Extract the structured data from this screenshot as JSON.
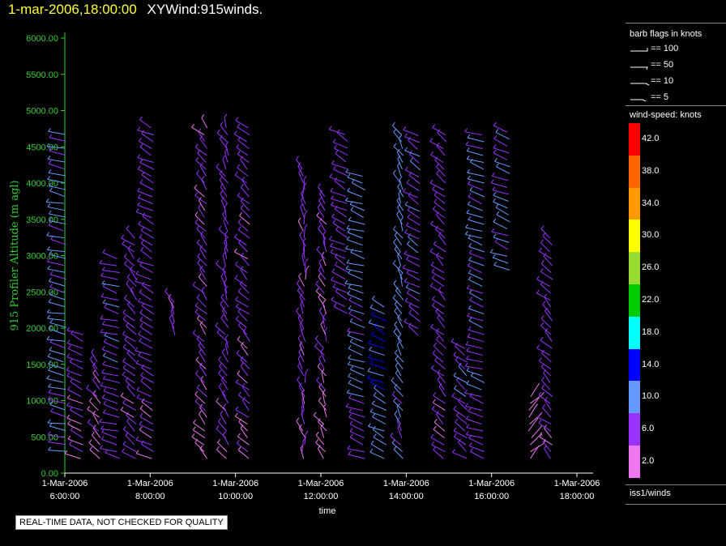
{
  "header": {
    "date": "1-mar-2006,18:00:00",
    "name": "XYWind:915winds."
  },
  "notice": "REAL-TIME DATA, NOT CHECKED FOR QUALITY",
  "legend": {
    "barb_title": "barb flags in knots",
    "barb_items": [
      "== 100",
      "== 50",
      "== 10",
      "== 5"
    ],
    "speed_title": "wind-speed: knots",
    "speed_bins": [
      {
        "label": "42.0",
        "color": "#ff0000"
      },
      {
        "label": "38.0",
        "color": "#ff6600"
      },
      {
        "label": "34.0",
        "color": "#ff9900"
      },
      {
        "label": "30.0",
        "color": "#ffff00"
      },
      {
        "label": "26.0",
        "color": "#99dd33"
      },
      {
        "label": "22.0",
        "color": "#00cc00"
      },
      {
        "label": "18.0",
        "color": "#00ffff"
      },
      {
        "label": "14.0",
        "color": "#0000ff"
      },
      {
        "label": "10.0",
        "color": "#6699ff"
      },
      {
        "label": "6.0",
        "color": "#9933ff"
      },
      {
        "label": "2.0",
        "color": "#ee77ee"
      }
    ],
    "source": "iss1/winds"
  },
  "colors": {
    "axis_y": "#33cc33",
    "axis_x": "#ffffff",
    "title_date": "#ffff33"
  },
  "chart_data": {
    "type": "wind-barb profile",
    "ylabel": "915 Profiler Altitude (m agl)",
    "xlabel": "time",
    "y_ticks": [
      "0.00",
      "500.00",
      "1000.00",
      "1500.00",
      "2000.00",
      "2500.00",
      "3000.00",
      "3500.00",
      "4000.00",
      "4500.00",
      "5000.00",
      "5500.00",
      "6000.00"
    ],
    "ylim": [
      0,
      6000
    ],
    "x_ticks": [
      {
        "date": "1-Mar-2006",
        "time": "6:00:00"
      },
      {
        "date": "1-Mar-2006",
        "time": "8:00:00"
      },
      {
        "date": "1-Mar-2006",
        "time": "10:00:00"
      },
      {
        "date": "1-Mar-2006",
        "time": "12:00:00"
      },
      {
        "date": "1-Mar-2006",
        "time": "14:00:00"
      },
      {
        "date": "1-Mar-2006",
        "time": "16:00:00"
      },
      {
        "date": "1-Mar-2006",
        "time": "18:00:00"
      }
    ],
    "xlim_hours": [
      6,
      18.5
    ],
    "profiles": [
      {
        "t": 6.0,
        "bottom": 300,
        "top": 4700,
        "speed": 9,
        "dir": 250
      },
      {
        "t": 6.4,
        "bottom": 200,
        "top": 2000,
        "speed": 6,
        "dir": 235
      },
      {
        "t": 6.8,
        "bottom": 200,
        "top": 1550,
        "speed": 5,
        "dir": 210
      },
      {
        "t": 7.25,
        "bottom": 200,
        "top": 3000,
        "speed": 7,
        "dir": 245
      },
      {
        "t": 7.65,
        "bottom": 200,
        "top": 3300,
        "speed": 6,
        "dir": 215
      },
      {
        "t": 8.05,
        "bottom": 200,
        "top": 4800,
        "speed": 6,
        "dir": 230
      },
      {
        "t": 8.55,
        "bottom": 1900,
        "top": 2400,
        "speed": 5,
        "dir": 200
      },
      {
        "t": 9.3,
        "bottom": 200,
        "top": 4800,
        "speed": 5,
        "dir": 210
      },
      {
        "t": 9.8,
        "bottom": 200,
        "top": 4800,
        "speed": 6,
        "dir": 200
      },
      {
        "t": 10.3,
        "bottom": 200,
        "top": 4800,
        "speed": 5,
        "dir": 215
      },
      {
        "t": 11.6,
        "bottom": 200,
        "top": 4200,
        "speed": 5,
        "dir": 190
      },
      {
        "t": 12.1,
        "bottom": 200,
        "top": 3900,
        "speed": 4,
        "dir": 200
      },
      {
        "t": 12.6,
        "bottom": 2200,
        "top": 4700,
        "speed": 6,
        "dir": 230
      },
      {
        "t": 13.0,
        "bottom": 200,
        "top": 4100,
        "speed": 9,
        "dir": 240
      },
      {
        "t": 13.5,
        "bottom": 200,
        "top": 2300,
        "speed": 12,
        "dir": 230
      },
      {
        "t": 13.9,
        "bottom": 200,
        "top": 4700,
        "speed": 10,
        "dir": 200
      },
      {
        "t": 14.3,
        "bottom": 1900,
        "top": 4700,
        "speed": 7,
        "dir": 225
      },
      {
        "t": 14.9,
        "bottom": 200,
        "top": 4700,
        "speed": 6,
        "dir": 215
      },
      {
        "t": 15.4,
        "bottom": 200,
        "top": 1800,
        "speed": 7,
        "dir": 220
      },
      {
        "t": 15.8,
        "bottom": 200,
        "top": 4700,
        "speed": 8,
        "dir": 240
      },
      {
        "t": 16.4,
        "bottom": 2800,
        "top": 4700,
        "speed": 8,
        "dir": 235
      },
      {
        "t": 16.9,
        "bottom": 200,
        "top": 1100,
        "speed": 4,
        "dir": 150
      },
      {
        "t": 17.4,
        "bottom": 200,
        "top": 3300,
        "speed": 6,
        "dir": 215
      }
    ]
  }
}
